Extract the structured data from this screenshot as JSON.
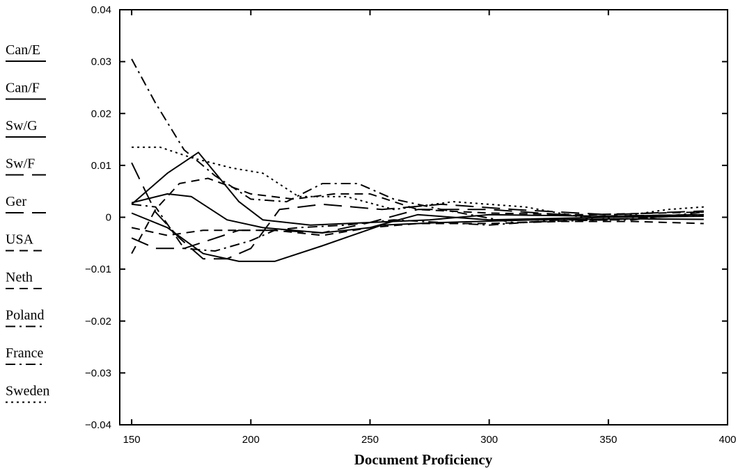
{
  "chart_data": {
    "type": "line",
    "title": "",
    "xlabel": "Document Proficiency",
    "ylabel": "",
    "xlim": [
      145,
      400
    ],
    "ylim": [
      -0.04,
      0.04
    ],
    "x_ticks": [
      150,
      200,
      250,
      300,
      350,
      400
    ],
    "x_tick_labels": [
      "150",
      "200",
      "250",
      "300",
      "350",
      "400"
    ],
    "y_ticks": [
      0.04,
      0.03,
      0.02,
      0.01,
      0,
      -0.01,
      -0.02,
      -0.03,
      -0.04
    ],
    "y_tick_labels": [
      "0.04",
      "0.03",
      "0.02",
      "0.01",
      "0",
      "−0.01",
      "−0.02",
      "−0.03",
      "−0.04"
    ],
    "grid": false,
    "legend_position": "left",
    "series": [
      {
        "name": "Can/E",
        "dash": "solid",
        "x": [
          150,
          165,
          178,
          195,
          205,
          225,
          250,
          275,
          300,
          350,
          390
        ],
        "y": [
          0.0025,
          0.0085,
          0.0125,
          0.003,
          -0.0005,
          -0.0015,
          -0.001,
          -0.0005,
          0.0005,
          0.0002,
          0.0005
        ]
      },
      {
        "name": "Can/F",
        "dash": "solid",
        "x": [
          150,
          165,
          175,
          190,
          205,
          230,
          250,
          270,
          300,
          350,
          390
        ],
        "y": [
          0.0028,
          0.0045,
          0.004,
          -0.0005,
          -0.002,
          -0.003,
          -0.002,
          0.0005,
          -0.0005,
          0.0,
          0.0002
        ]
      },
      {
        "name": "Sw/G",
        "dash": "solid",
        "x": [
          150,
          165,
          180,
          195,
          210,
          230,
          255,
          280,
          320,
          360,
          390
        ],
        "y": [
          0.0008,
          -0.002,
          -0.007,
          -0.0085,
          -0.0085,
          -0.0055,
          -0.0015,
          -0.001,
          -0.0005,
          -0.0003,
          -0.0004
        ]
      },
      {
        "name": "Sw/F",
        "dash": "long-dash",
        "x": [
          150,
          160,
          170,
          180,
          190,
          200,
          212,
          230,
          255,
          280,
          310,
          350,
          390
        ],
        "y": [
          0.0105,
          0.001,
          -0.004,
          -0.008,
          -0.008,
          -0.006,
          0.0015,
          0.0025,
          0.0015,
          0.0025,
          0.0015,
          0.0005,
          0.0012
        ]
      },
      {
        "name": "Ger",
        "dash": "long-dash",
        "x": [
          150,
          160,
          172,
          182,
          195,
          210,
          230,
          250,
          270,
          300,
          340,
          390
        ],
        "y": [
          -0.004,
          -0.006,
          -0.006,
          -0.0045,
          -0.0025,
          -0.0025,
          -0.003,
          -0.001,
          0.0015,
          0.0015,
          0.0002,
          0.0005
        ]
      },
      {
        "name": "USA",
        "dash": "dash",
        "x": [
          150,
          160,
          170,
          182,
          200,
          218,
          235,
          250,
          270,
          300,
          340,
          390
        ],
        "y": [
          -0.007,
          0.0015,
          0.0065,
          0.0075,
          0.0045,
          0.0035,
          0.0045,
          0.0045,
          0.0015,
          0.0008,
          0.0005,
          0.001
        ]
      },
      {
        "name": "Neth",
        "dash": "dash",
        "x": [
          150,
          165,
          180,
          195,
          210,
          230,
          250,
          270,
          300,
          330,
          360,
          390
        ],
        "y": [
          -0.002,
          -0.0035,
          -0.0025,
          -0.0025,
          -0.0025,
          -0.0035,
          -0.002,
          -0.0012,
          -0.0012,
          -0.0008,
          -0.0008,
          -0.0012
        ]
      },
      {
        "name": "Poland",
        "dash": "dash-dot",
        "x": [
          150,
          160,
          172,
          185,
          200,
          215,
          230,
          245,
          260,
          280,
          310,
          350,
          390
        ],
        "y": [
          0.0305,
          0.022,
          0.013,
          0.008,
          0.0035,
          0.003,
          0.0065,
          0.0065,
          0.0035,
          0.0015,
          -0.001,
          -0.0005,
          0.0005
        ]
      },
      {
        "name": "France",
        "dash": "dash-dot",
        "x": [
          150,
          160,
          172,
          185,
          200,
          210,
          220,
          240,
          260,
          280,
          300,
          330,
          360,
          390
        ],
        "y": [
          0.0025,
          0.002,
          -0.006,
          -0.0065,
          -0.0045,
          -0.0025,
          -0.002,
          -0.0015,
          -0.0005,
          -0.001,
          -0.0015,
          -0.0005,
          -0.0005,
          0.001
        ]
      },
      {
        "name": "Sweden",
        "dash": "dot",
        "x": [
          150,
          162,
          175,
          192,
          205,
          220,
          240,
          260,
          285,
          315,
          345,
          375,
          390
        ],
        "y": [
          0.0135,
          0.0135,
          0.0115,
          0.0095,
          0.0085,
          0.004,
          0.004,
          0.0015,
          0.003,
          0.002,
          -0.0005,
          0.0015,
          0.002
        ]
      }
    ]
  }
}
